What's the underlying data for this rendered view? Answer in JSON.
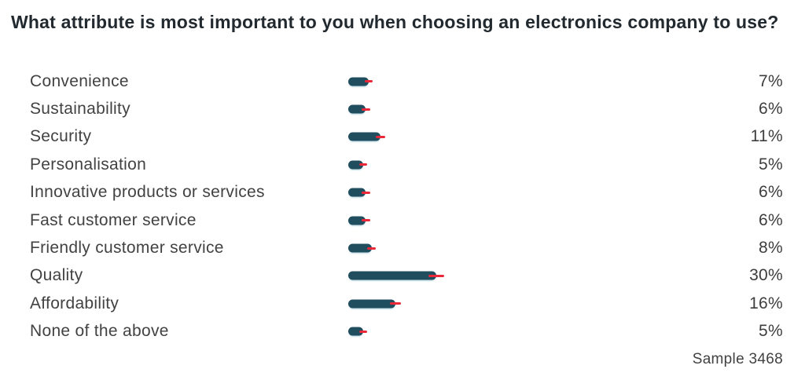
{
  "page": {
    "title": "What attribute is most important to you when choosing an electronics company to use?",
    "sample_note": "Sample 3468"
  },
  "colors": {
    "bar": "#204e5e",
    "error_tick": "#ea2839",
    "title_text": "#222a30",
    "body_text": "#424242",
    "background": "#ffffff"
  },
  "chart_data": {
    "type": "bar",
    "orientation": "horizontal",
    "title": "What attribute is most important to you when choosing an electronics company to use?",
    "categories": [
      "Convenience",
      "Sustainability",
      "Security",
      "Personalisation",
      "Innovative products or services",
      "Fast customer service",
      "Friendly customer service",
      "Quality",
      "Affordability",
      "None of the above"
    ],
    "values": [
      7,
      6,
      11,
      5,
      6,
      6,
      8,
      30,
      16,
      5
    ],
    "value_labels": [
      "7%",
      "6%",
      "11%",
      "5%",
      "6%",
      "6%",
      "8%",
      "30%",
      "16%",
      "5%"
    ],
    "unit": "%",
    "xlim": [
      0,
      30
    ],
    "grid": false,
    "legend": false,
    "error_ticks": true,
    "annotation": "Sample 3468"
  }
}
